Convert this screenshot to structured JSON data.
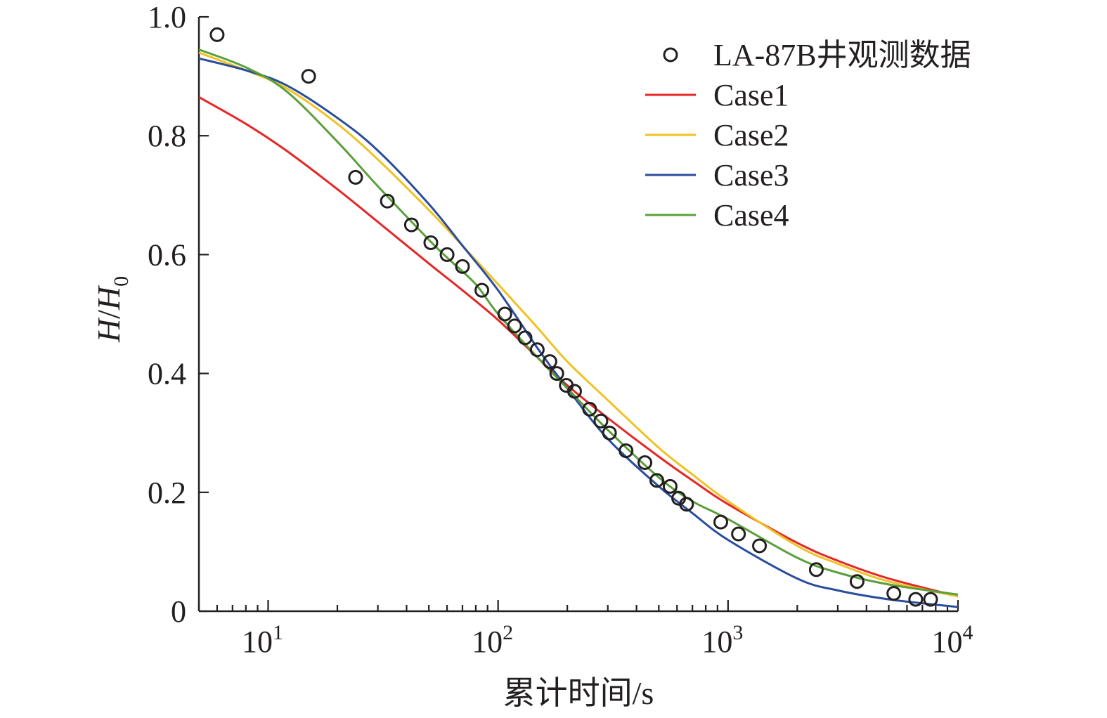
{
  "chart_data": {
    "type": "line",
    "xlabel": "累计时间/s",
    "ylabel": "H/H0",
    "ylabel_main": "H",
    "ylabel_sep": "/",
    "ylabel_den": "H",
    "ylabel_sub": "0",
    "xscale": "log",
    "xlim": [
      5,
      10000
    ],
    "ylim": [
      0,
      1.0
    ],
    "x_ticks": [
      {
        "value": 10,
        "base": "10",
        "exp": "1"
      },
      {
        "value": 100,
        "base": "10",
        "exp": "2"
      },
      {
        "value": 1000,
        "base": "10",
        "exp": "3"
      },
      {
        "value": 10000,
        "base": "10",
        "exp": "4"
      }
    ],
    "y_ticks": [
      {
        "value": 0,
        "label": "0"
      },
      {
        "value": 0.2,
        "label": "0.2"
      },
      {
        "value": 0.4,
        "label": "0.4"
      },
      {
        "value": 0.6,
        "label": "0.6"
      },
      {
        "value": 0.8,
        "label": "0.8"
      },
      {
        "value": 1.0,
        "label": "1.0"
      }
    ],
    "legend_position": "top-right",
    "grid": false,
    "observed": {
      "name": "LA-87B井观测数据",
      "color": "#231f20",
      "x": [
        6,
        15,
        24,
        33,
        42,
        51,
        60,
        70,
        85,
        107,
        118,
        131,
        148,
        168,
        180,
        198,
        215,
        250,
        280,
        305,
        360,
        435,
        490,
        560,
        610,
        660,
        930,
        1110,
        1370,
        2420,
        3640,
        5260,
        6550,
        7600
      ],
      "y": [
        0.97,
        0.9,
        0.73,
        0.69,
        0.65,
        0.62,
        0.6,
        0.58,
        0.54,
        0.5,
        0.48,
        0.46,
        0.44,
        0.42,
        0.4,
        0.38,
        0.37,
        0.34,
        0.32,
        0.3,
        0.27,
        0.25,
        0.22,
        0.21,
        0.19,
        0.18,
        0.15,
        0.13,
        0.11,
        0.07,
        0.05,
        0.03,
        0.02,
        0.02
      ]
    },
    "series": [
      {
        "name": "Case1",
        "color": "#e52726",
        "x": [
          5,
          8,
          12,
          20,
          30,
          50,
          70,
          100,
          150,
          200,
          300,
          500,
          700,
          1000,
          2000,
          3000,
          5000,
          10000
        ],
        "y": [
          0.865,
          0.82,
          0.775,
          0.71,
          0.655,
          0.585,
          0.54,
          0.49,
          0.425,
          0.38,
          0.325,
          0.26,
          0.22,
          0.18,
          0.115,
          0.085,
          0.055,
          0.025
        ]
      },
      {
        "name": "Case2",
        "color": "#f0c225",
        "x": [
          5,
          8,
          12,
          20,
          30,
          50,
          70,
          100,
          150,
          200,
          300,
          500,
          700,
          1000,
          2000,
          3000,
          5000,
          10000
        ],
        "y": [
          0.94,
          0.91,
          0.88,
          0.82,
          0.76,
          0.675,
          0.615,
          0.55,
          0.475,
          0.42,
          0.355,
          0.275,
          0.23,
          0.185,
          0.11,
          0.08,
          0.05,
          0.025
        ]
      },
      {
        "name": "Case3",
        "color": "#2a4d9c",
        "x": [
          5,
          8,
          12,
          20,
          30,
          50,
          70,
          100,
          150,
          200,
          300,
          500,
          700,
          1000,
          2000,
          3000,
          5000,
          10000
        ],
        "y": [
          0.93,
          0.91,
          0.885,
          0.83,
          0.775,
          0.685,
          0.615,
          0.54,
          0.44,
          0.375,
          0.29,
          0.21,
          0.165,
          0.12,
          0.055,
          0.035,
          0.02,
          0.007
        ]
      },
      {
        "name": "Case4",
        "color": "#5aa03a",
        "x": [
          5,
          8,
          12,
          20,
          30,
          50,
          60,
          80,
          100,
          150,
          200,
          300,
          500,
          700,
          1000,
          2000,
          3000,
          5000,
          10000
        ],
        "y": [
          0.945,
          0.915,
          0.875,
          0.79,
          0.715,
          0.625,
          0.595,
          0.55,
          0.5,
          0.425,
          0.375,
          0.305,
          0.225,
          0.185,
          0.155,
          0.09,
          0.065,
          0.045,
          0.028
        ]
      }
    ]
  }
}
